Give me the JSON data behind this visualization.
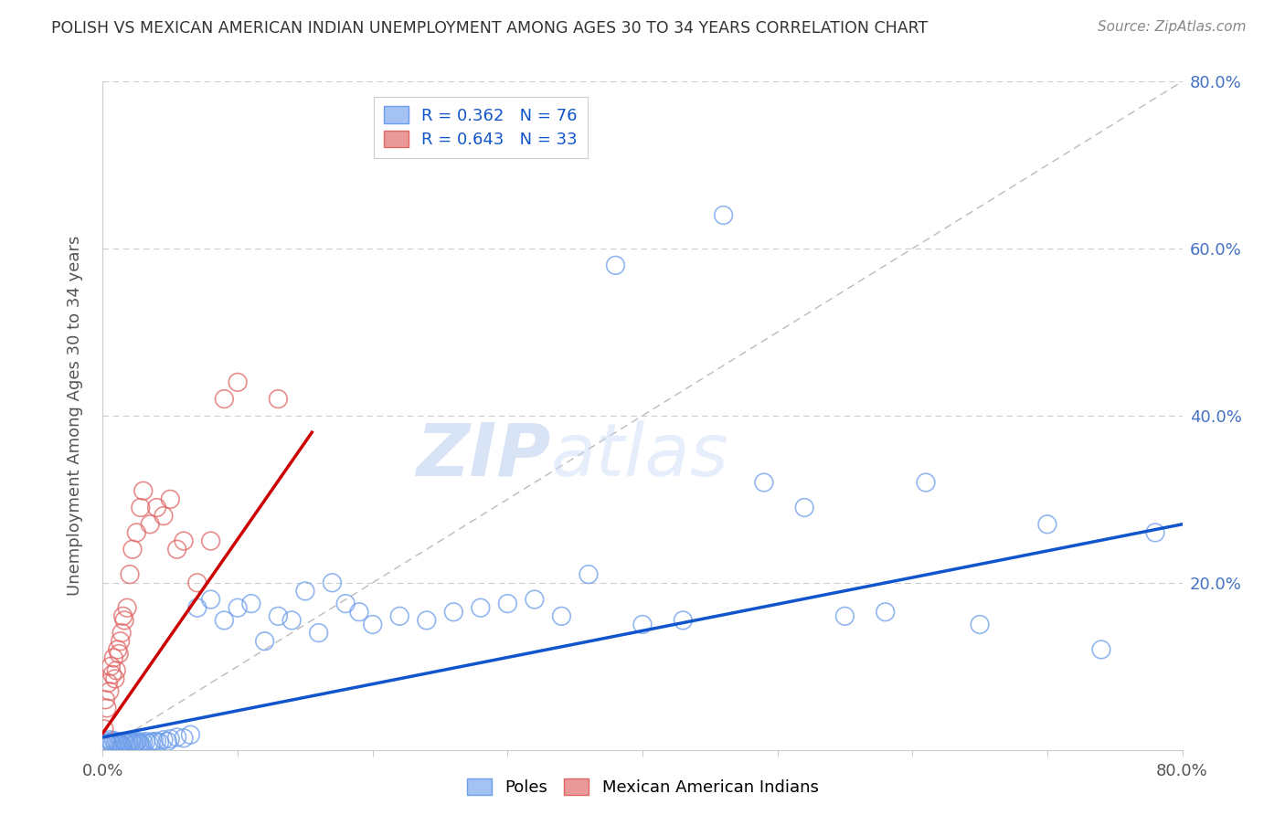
{
  "title": "POLISH VS MEXICAN AMERICAN INDIAN UNEMPLOYMENT AMONG AGES 30 TO 34 YEARS CORRELATION CHART",
  "source": "Source: ZipAtlas.com",
  "ylabel": "Unemployment Among Ages 30 to 34 years",
  "xlim": [
    0,
    0.8
  ],
  "ylim": [
    0,
    0.8
  ],
  "blue_color": "#a4c2f4",
  "blue_edge_color": "#6d9eeb",
  "pink_color": "#ea9999",
  "pink_edge_color": "#e06666",
  "blue_line_color": "#1155cc",
  "pink_line_color": "#cc0000",
  "diagonal_color": "#bbbbbb",
  "grid_color": "#cccccc",
  "legend_r_blue": "R = 0.362",
  "legend_n_blue": "N = 76",
  "legend_r_pink": "R = 0.643",
  "legend_n_pink": "N = 33",
  "watermark_zip": "ZIP",
  "watermark_atlas": "atlas",
  "blue_scatter_x": [
    0.001,
    0.002,
    0.003,
    0.004,
    0.005,
    0.006,
    0.007,
    0.008,
    0.009,
    0.01,
    0.011,
    0.012,
    0.013,
    0.014,
    0.015,
    0.016,
    0.017,
    0.018,
    0.019,
    0.02,
    0.021,
    0.022,
    0.023,
    0.024,
    0.025,
    0.026,
    0.027,
    0.028,
    0.03,
    0.032,
    0.034,
    0.036,
    0.038,
    0.04,
    0.042,
    0.045,
    0.048,
    0.05,
    0.055,
    0.06,
    0.065,
    0.07,
    0.08,
    0.09,
    0.1,
    0.11,
    0.12,
    0.13,
    0.14,
    0.15,
    0.16,
    0.17,
    0.18,
    0.19,
    0.2,
    0.22,
    0.24,
    0.26,
    0.28,
    0.3,
    0.32,
    0.34,
    0.36,
    0.38,
    0.4,
    0.43,
    0.46,
    0.49,
    0.52,
    0.55,
    0.58,
    0.61,
    0.65,
    0.7,
    0.74,
    0.78
  ],
  "blue_scatter_y": [
    0.005,
    0.01,
    0.008,
    0.006,
    0.012,
    0.009,
    0.007,
    0.011,
    0.008,
    0.01,
    0.009,
    0.007,
    0.008,
    0.006,
    0.01,
    0.009,
    0.008,
    0.007,
    0.009,
    0.008,
    0.01,
    0.009,
    0.007,
    0.008,
    0.009,
    0.01,
    0.008,
    0.007,
    0.009,
    0.01,
    0.008,
    0.009,
    0.01,
    0.01,
    0.009,
    0.012,
    0.01,
    0.013,
    0.015,
    0.014,
    0.018,
    0.17,
    0.18,
    0.155,
    0.17,
    0.175,
    0.13,
    0.16,
    0.155,
    0.19,
    0.14,
    0.2,
    0.175,
    0.165,
    0.15,
    0.16,
    0.155,
    0.165,
    0.17,
    0.175,
    0.18,
    0.16,
    0.21,
    0.58,
    0.15,
    0.155,
    0.64,
    0.32,
    0.29,
    0.16,
    0.165,
    0.32,
    0.15,
    0.27,
    0.12,
    0.26
  ],
  "pink_scatter_x": [
    0.001,
    0.002,
    0.003,
    0.004,
    0.005,
    0.006,
    0.007,
    0.008,
    0.009,
    0.01,
    0.011,
    0.012,
    0.013,
    0.014,
    0.015,
    0.016,
    0.018,
    0.02,
    0.022,
    0.025,
    0.028,
    0.03,
    0.035,
    0.04,
    0.045,
    0.05,
    0.055,
    0.06,
    0.07,
    0.08,
    0.09,
    0.1,
    0.13
  ],
  "pink_scatter_y": [
    0.025,
    0.06,
    0.05,
    0.08,
    0.07,
    0.1,
    0.09,
    0.11,
    0.085,
    0.095,
    0.12,
    0.115,
    0.13,
    0.14,
    0.16,
    0.155,
    0.17,
    0.21,
    0.24,
    0.26,
    0.29,
    0.31,
    0.27,
    0.29,
    0.28,
    0.3,
    0.24,
    0.25,
    0.2,
    0.25,
    0.42,
    0.44,
    0.42
  ],
  "blue_trend_x": [
    0.0,
    0.8
  ],
  "blue_trend_y": [
    0.015,
    0.27
  ],
  "pink_trend_x": [
    0.0,
    0.155
  ],
  "pink_trend_y": [
    0.02,
    0.38
  ]
}
